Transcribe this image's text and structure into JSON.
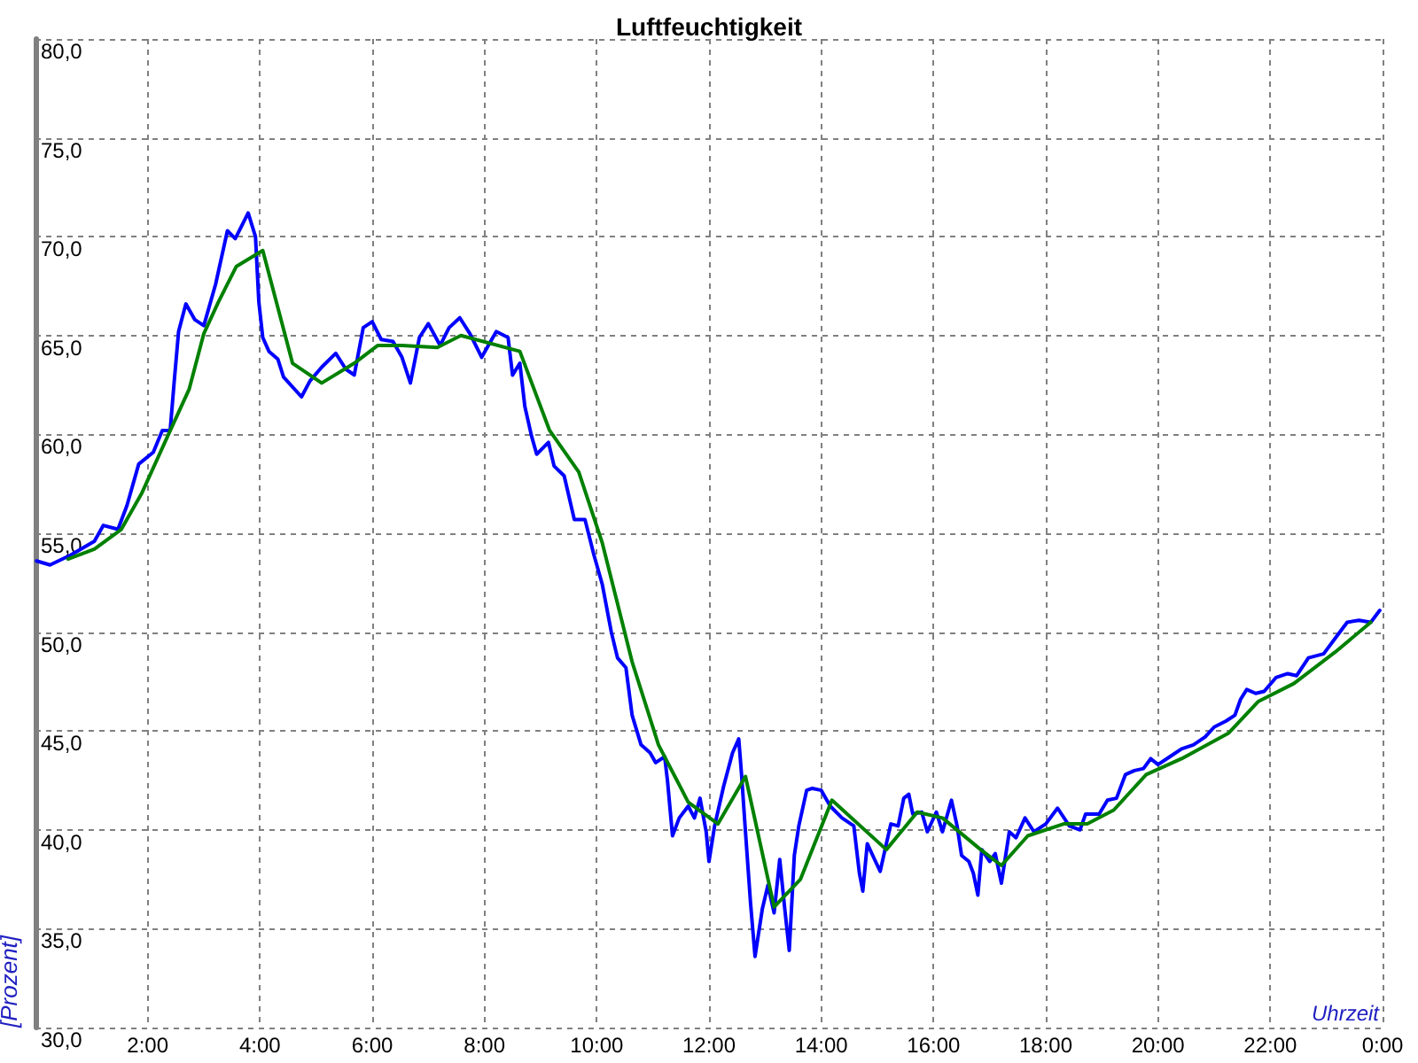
{
  "chart_data": {
    "type": "line",
    "title": "Luftfeuchtigkeit",
    "xlabel": "Uhrzeit",
    "ylabel": "[Prozent]",
    "xlim": [
      0,
      24
    ],
    "ylim": [
      30,
      80
    ],
    "xticks": [
      {
        "value": 0,
        "label": null
      },
      {
        "value": 2,
        "label": "2:00"
      },
      {
        "value": 4,
        "label": "4:00"
      },
      {
        "value": 6,
        "label": "6:00"
      },
      {
        "value": 8,
        "label": "8:00"
      },
      {
        "value": 10,
        "label": "10:00"
      },
      {
        "value": 12,
        "label": "12:00"
      },
      {
        "value": 14,
        "label": "14:00"
      },
      {
        "value": 16,
        "label": "16:00"
      },
      {
        "value": 18,
        "label": "18:00"
      },
      {
        "value": 20,
        "label": "20:00"
      },
      {
        "value": 22,
        "label": "22:00"
      },
      {
        "value": 24,
        "label": "0:00"
      }
    ],
    "yticks": [
      {
        "value": 30,
        "label": "30,0"
      },
      {
        "value": 35,
        "label": "35,0"
      },
      {
        "value": 40,
        "label": "40,0"
      },
      {
        "value": 45,
        "label": "45,0"
      },
      {
        "value": 50,
        "label": "50,0"
      },
      {
        "value": 55,
        "label": "55,0"
      },
      {
        "value": 60,
        "label": "60,0"
      },
      {
        "value": 65,
        "label": "65,0"
      },
      {
        "value": 70,
        "label": "70,0"
      },
      {
        "value": 75,
        "label": "75,0"
      },
      {
        "value": 80,
        "label": "80,0"
      }
    ],
    "grid": true,
    "line_style": "solid",
    "series": [
      {
        "color": "#0000ff",
        "x": [
          0.02,
          0.26,
          0.63,
          1.05,
          1.21,
          1.47,
          1.63,
          1.84,
          2.1,
          2.26,
          2.4,
          2.47,
          2.55,
          2.68,
          2.84,
          3.0,
          3.21,
          3.42,
          3.56,
          3.79,
          3.92,
          3.98,
          4.05,
          4.16,
          4.32,
          4.42,
          4.74,
          4.89,
          5.1,
          5.35,
          5.53,
          5.68,
          5.84,
          6.0,
          6.16,
          6.37,
          6.53,
          6.68,
          6.84,
          7.0,
          7.21,
          7.37,
          7.56,
          7.74,
          7.95,
          8.21,
          8.42,
          8.5,
          8.63,
          8.72,
          8.84,
          8.93,
          9.14,
          9.24,
          9.42,
          9.6,
          9.79,
          9.95,
          10.1,
          10.26,
          10.37,
          10.52,
          10.63,
          10.79,
          10.95,
          11.05,
          11.21,
          11.26,
          11.35,
          11.47,
          11.63,
          11.74,
          11.84,
          11.95,
          12.0,
          12.1,
          12.26,
          12.42,
          12.53,
          12.58,
          12.65,
          12.74,
          12.82,
          12.95,
          13.05,
          13.16,
          13.26,
          13.35,
          13.43,
          13.52,
          13.6,
          13.74,
          13.84,
          14.0,
          14.16,
          14.37,
          14.58,
          14.68,
          14.74,
          14.82,
          14.95,
          15.05,
          15.16,
          15.24,
          15.37,
          15.47,
          15.56,
          15.63,
          15.79,
          15.89,
          16.05,
          16.16,
          16.32,
          16.42,
          16.5,
          16.63,
          16.71,
          16.79,
          16.86,
          17.0,
          17.1,
          17.21,
          17.35,
          17.47,
          17.63,
          17.79,
          18.0,
          18.21,
          18.42,
          18.61,
          18.71,
          18.95,
          19.1,
          19.26,
          19.42,
          19.58,
          19.74,
          19.87,
          20.0,
          20.21,
          20.42,
          20.63,
          20.84,
          21.0,
          21.21,
          21.37,
          21.47,
          21.58,
          21.74,
          21.89,
          22.1,
          22.31,
          22.47,
          22.68,
          22.95,
          23.16,
          23.37,
          23.58,
          23.79,
          23.95
        ],
        "values": [
          53.6,
          53.4,
          53.9,
          54.6,
          55.4,
          55.2,
          56.4,
          58.5,
          59.1,
          60.2,
          60.2,
          62.6,
          65.2,
          66.6,
          65.8,
          65.5,
          67.6,
          70.3,
          69.9,
          71.2,
          70.0,
          66.7,
          64.9,
          64.2,
          63.8,
          62.9,
          61.9,
          62.7,
          63.4,
          64.1,
          63.3,
          63.0,
          65.4,
          65.7,
          64.8,
          64.7,
          63.9,
          62.6,
          64.9,
          65.6,
          64.5,
          65.4,
          65.9,
          65.1,
          63.9,
          65.2,
          64.9,
          63.0,
          63.6,
          61.4,
          59.9,
          59.0,
          59.6,
          58.4,
          57.9,
          55.7,
          55.7,
          53.9,
          52.4,
          50.0,
          48.7,
          48.2,
          45.8,
          44.3,
          43.9,
          43.4,
          43.7,
          42.5,
          39.7,
          40.6,
          41.2,
          40.6,
          41.6,
          39.9,
          38.4,
          40.2,
          42.2,
          43.9,
          44.6,
          42.8,
          39.9,
          36.3,
          33.6,
          36.0,
          37.2,
          35.8,
          38.5,
          36.0,
          33.9,
          38.7,
          40.2,
          42.0,
          42.1,
          42.0,
          41.2,
          40.6,
          40.2,
          37.8,
          36.9,
          39.3,
          38.5,
          37.9,
          39.3,
          40.3,
          40.2,
          41.6,
          41.8,
          40.8,
          40.9,
          39.9,
          40.9,
          39.9,
          41.5,
          40.2,
          38.7,
          38.4,
          37.8,
          36.7,
          39.0,
          38.4,
          38.8,
          37.3,
          39.9,
          39.6,
          40.6,
          39.9,
          40.3,
          41.1,
          40.2,
          40.0,
          40.8,
          40.8,
          41.5,
          41.6,
          42.8,
          43.0,
          43.1,
          43.6,
          43.3,
          43.7,
          44.1,
          44.3,
          44.7,
          45.2,
          45.5,
          45.8,
          46.6,
          47.1,
          46.9,
          47.0,
          47.7,
          47.9,
          47.8,
          48.7,
          48.9,
          49.7,
          50.5,
          50.6,
          50.5,
          51.1
        ]
      },
      {
        "color": "#008000",
        "x": [
          0.58,
          1.05,
          1.53,
          1.89,
          2.37,
          2.74,
          3.0,
          3.26,
          3.58,
          4.05,
          4.58,
          5.1,
          5.68,
          6.1,
          6.53,
          7.16,
          7.58,
          8.63,
          9.16,
          9.68,
          10.1,
          10.63,
          11.1,
          11.63,
          12.16,
          12.65,
          13.16,
          13.63,
          14.19,
          15.16,
          15.71,
          16.16,
          16.84,
          17.21,
          17.68,
          18.32,
          18.74,
          19.21,
          19.79,
          20.42,
          21.26,
          21.79,
          22.42,
          23.16,
          23.79
        ],
        "values": [
          53.7,
          54.2,
          55.2,
          57.0,
          60.0,
          62.3,
          65.1,
          66.7,
          68.5,
          69.3,
          63.6,
          62.6,
          63.6,
          64.5,
          64.5,
          64.4,
          65.0,
          64.2,
          60.2,
          58.1,
          54.5,
          48.5,
          44.3,
          41.4,
          40.3,
          42.7,
          36.1,
          37.5,
          41.5,
          39.0,
          40.9,
          40.6,
          39.0,
          38.2,
          39.7,
          40.3,
          40.3,
          41.0,
          42.8,
          43.6,
          44.9,
          46.5,
          47.4,
          49.0,
          50.5
        ]
      }
    ]
  }
}
